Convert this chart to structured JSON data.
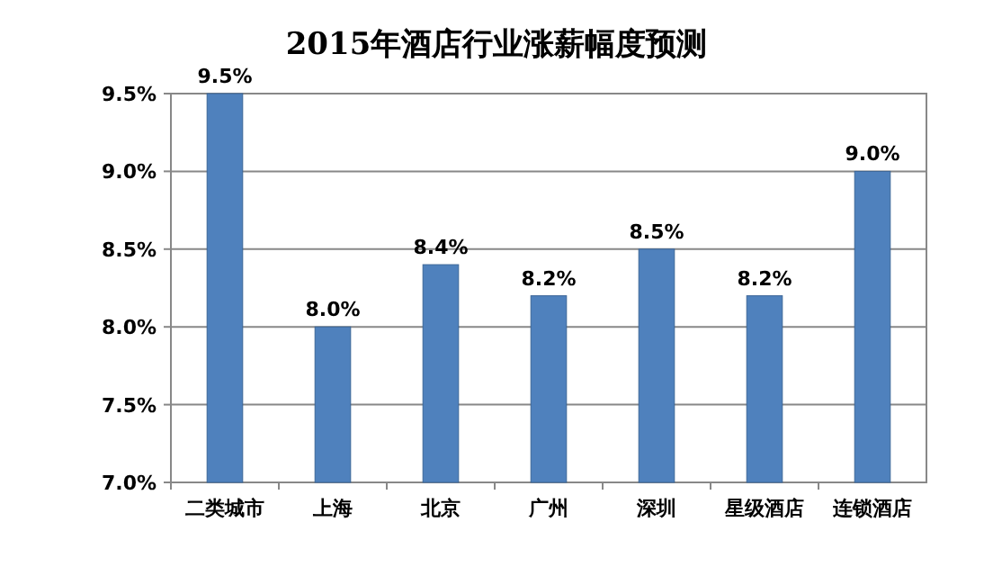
{
  "chart_data": {
    "type": "bar",
    "title": "2015年酒店行业涨薪幅度预测",
    "categories": [
      "二类城市",
      "上海",
      "北京",
      "广州",
      "深圳",
      "星级酒店",
      "连锁酒店"
    ],
    "values": [
      9.5,
      8.0,
      8.4,
      8.2,
      8.5,
      8.2,
      9.0
    ],
    "value_labels": [
      "9.5%",
      "8.0%",
      "8.4%",
      "8.2%",
      "8.5%",
      "8.2%",
      "9.0%"
    ],
    "color": "#4f81bd",
    "ylim": [
      7.0,
      9.5
    ],
    "yticks": [
      {
        "value": 7.0,
        "label": "7.0%"
      },
      {
        "value": 7.5,
        "label": "7.5%"
      },
      {
        "value": 8.0,
        "label": "8.0%"
      },
      {
        "value": 8.5,
        "label": "8.5%"
      },
      {
        "value": 9.0,
        "label": "9.0%"
      },
      {
        "value": 9.5,
        "label": "9.5%"
      }
    ],
    "grid": "y"
  }
}
